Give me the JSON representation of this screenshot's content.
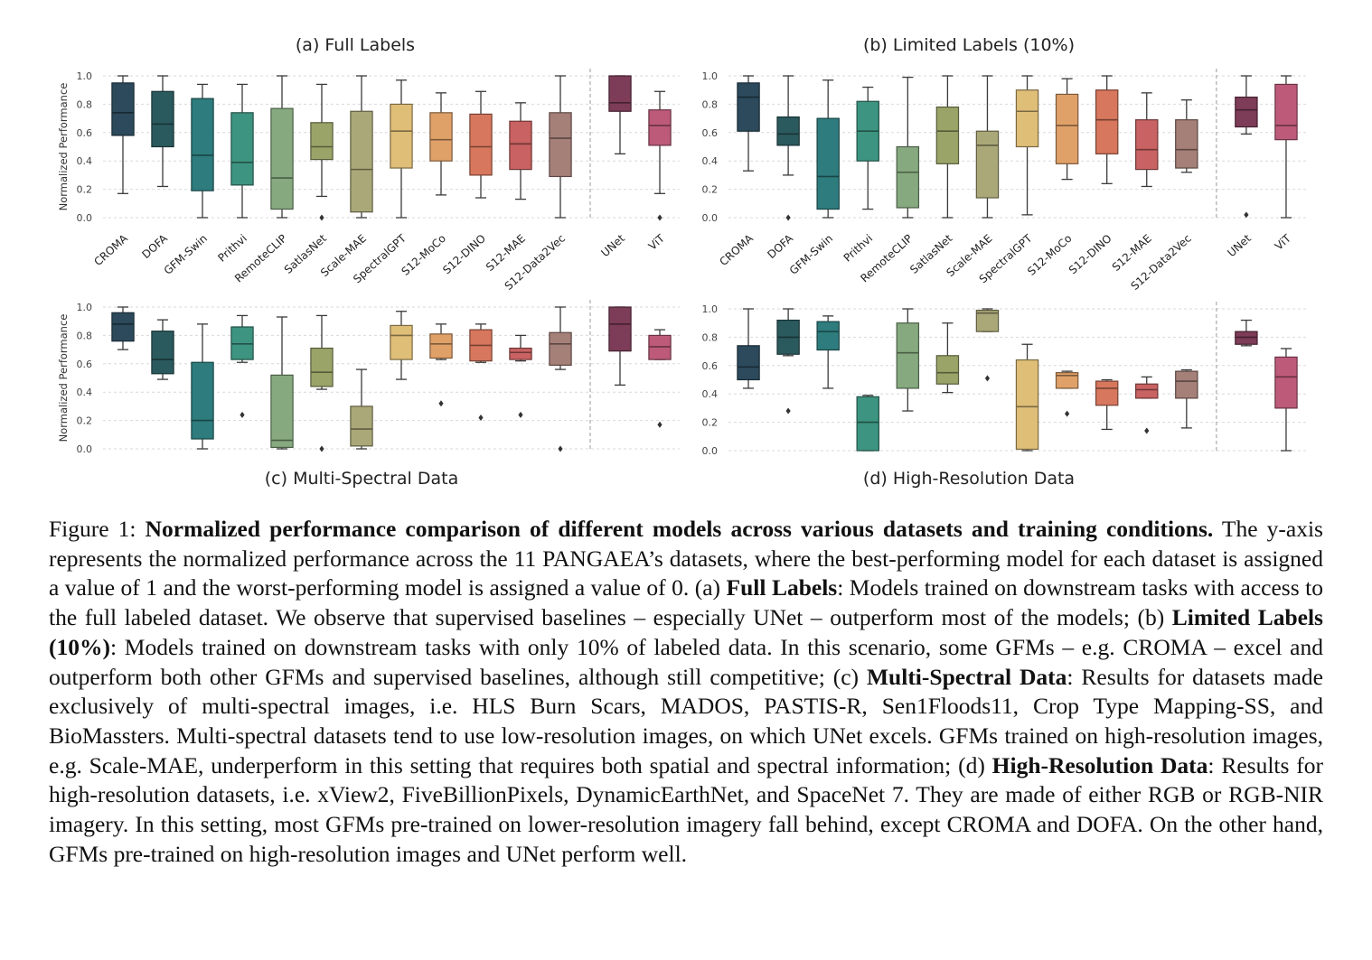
{
  "models": [
    "CROMA",
    "DOFA",
    "GFM-Swin",
    "Prithvi",
    "RemoteCLIP",
    "SatlasNet",
    "Scale-MAE",
    "SpectralGPT",
    "S12-MoCo",
    "S12-DINO",
    "S12-MAE",
    "S12-Data2Vec",
    "UNet",
    "ViT"
  ],
  "colors": [
    "#2c4a5c",
    "#2b5a5e",
    "#2e7c7d",
    "#3d9480",
    "#86a97f",
    "#9aa468",
    "#aaa878",
    "#dfbe78",
    "#e0a169",
    "#d7775d",
    "#c96262",
    "#a58078",
    "#7d3c58",
    "#bd5a7a"
  ],
  "chart_data": [
    {
      "type": "box",
      "title": "(a) Full Labels",
      "ylabel": "Normalized Performance",
      "ylim": [
        0,
        1
      ],
      "yticks": [
        "0.0",
        "0.2",
        "0.4",
        "0.6",
        "0.8",
        "1.0"
      ],
      "categories": [
        "CROMA",
        "DOFA",
        "GFM-Swin",
        "Prithvi",
        "RemoteCLIP",
        "SatlasNet",
        "Scale-MAE",
        "SpectralGPT",
        "S12-MoCo",
        "S12-DINO",
        "S12-MAE",
        "S12-Data2Vec",
        "UNet",
        "ViT"
      ],
      "boxes": [
        {
          "min": 0.17,
          "q1": 0.58,
          "median": 0.74,
          "q3": 0.95,
          "max": 1.0,
          "outliers": []
        },
        {
          "min": 0.22,
          "q1": 0.5,
          "median": 0.66,
          "q3": 0.89,
          "max": 1.0,
          "outliers": []
        },
        {
          "min": 0.0,
          "q1": 0.19,
          "median": 0.44,
          "q3": 0.84,
          "max": 0.94,
          "outliers": []
        },
        {
          "min": 0.0,
          "q1": 0.23,
          "median": 0.39,
          "q3": 0.74,
          "max": 0.94,
          "outliers": []
        },
        {
          "min": 0.0,
          "q1": 0.06,
          "median": 0.28,
          "q3": 0.77,
          "max": 1.0,
          "outliers": []
        },
        {
          "min": 0.15,
          "q1": 0.41,
          "median": 0.5,
          "q3": 0.67,
          "max": 0.94,
          "outliers": [
            0.0
          ]
        },
        {
          "min": 0.0,
          "q1": 0.04,
          "median": 0.34,
          "q3": 0.75,
          "max": 1.0,
          "outliers": []
        },
        {
          "min": 0.0,
          "q1": 0.35,
          "median": 0.61,
          "q3": 0.8,
          "max": 0.97,
          "outliers": []
        },
        {
          "min": 0.16,
          "q1": 0.4,
          "median": 0.55,
          "q3": 0.74,
          "max": 0.88,
          "outliers": []
        },
        {
          "min": 0.14,
          "q1": 0.3,
          "median": 0.5,
          "q3": 0.73,
          "max": 0.89,
          "outliers": []
        },
        {
          "min": 0.13,
          "q1": 0.34,
          "median": 0.52,
          "q3": 0.68,
          "max": 0.81,
          "outliers": []
        },
        {
          "min": 0.0,
          "q1": 0.29,
          "median": 0.56,
          "q3": 0.74,
          "max": 1.0,
          "outliers": []
        },
        {
          "min": 0.45,
          "q1": 0.75,
          "median": 0.81,
          "q3": 1.0,
          "max": 1.0,
          "outliers": []
        },
        {
          "min": 0.17,
          "q1": 0.51,
          "median": 0.65,
          "q3": 0.76,
          "max": 0.89,
          "outliers": [
            0.0
          ]
        }
      ]
    },
    {
      "type": "box",
      "title": "(b) Limited Labels (10%)",
      "ylabel": "",
      "ylim": [
        0,
        1
      ],
      "yticks": [
        "0.0",
        "0.2",
        "0.4",
        "0.6",
        "0.8",
        "1.0"
      ],
      "categories": [
        "CROMA",
        "DOFA",
        "GFM-Swin",
        "Prithvi",
        "RemoteCLIP",
        "SatlasNet",
        "Scale-MAE",
        "SpectralGPT",
        "S12-MoCo",
        "S12-DINO",
        "S12-MAE",
        "S12-Data2Vec",
        "UNet",
        "ViT"
      ],
      "boxes": [
        {
          "min": 0.33,
          "q1": 0.61,
          "median": 0.85,
          "q3": 0.95,
          "max": 1.0,
          "outliers": []
        },
        {
          "min": 0.3,
          "q1": 0.51,
          "median": 0.59,
          "q3": 0.71,
          "max": 1.0,
          "outliers": [
            0.0
          ]
        },
        {
          "min": 0.0,
          "q1": 0.06,
          "median": 0.29,
          "q3": 0.7,
          "max": 0.97,
          "outliers": []
        },
        {
          "min": 0.06,
          "q1": 0.4,
          "median": 0.61,
          "q3": 0.82,
          "max": 0.92,
          "outliers": []
        },
        {
          "min": 0.0,
          "q1": 0.07,
          "median": 0.32,
          "q3": 0.5,
          "max": 0.99,
          "outliers": []
        },
        {
          "min": 0.0,
          "q1": 0.38,
          "median": 0.61,
          "q3": 0.78,
          "max": 1.0,
          "outliers": []
        },
        {
          "min": 0.0,
          "q1": 0.14,
          "median": 0.51,
          "q3": 0.61,
          "max": 1.0,
          "outliers": []
        },
        {
          "min": 0.02,
          "q1": 0.5,
          "median": 0.75,
          "q3": 0.9,
          "max": 1.0,
          "outliers": []
        },
        {
          "min": 0.27,
          "q1": 0.38,
          "median": 0.65,
          "q3": 0.87,
          "max": 0.98,
          "outliers": []
        },
        {
          "min": 0.24,
          "q1": 0.45,
          "median": 0.69,
          "q3": 0.9,
          "max": 1.0,
          "outliers": []
        },
        {
          "min": 0.22,
          "q1": 0.34,
          "median": 0.48,
          "q3": 0.69,
          "max": 0.88,
          "outliers": []
        },
        {
          "min": 0.32,
          "q1": 0.35,
          "median": 0.48,
          "q3": 0.69,
          "max": 0.83,
          "outliers": []
        },
        {
          "min": 0.59,
          "q1": 0.64,
          "median": 0.76,
          "q3": 0.85,
          "max": 1.0,
          "outliers": [
            0.02
          ]
        },
        {
          "min": 0.0,
          "q1": 0.55,
          "median": 0.65,
          "q3": 0.94,
          "max": 1.0,
          "outliers": []
        }
      ]
    },
    {
      "type": "box",
      "title": "(c) Multi-Spectral Data",
      "ylabel": "Normalized Performance",
      "ylim": [
        0,
        1
      ],
      "yticks": [
        "0.0",
        "0.2",
        "0.4",
        "0.6",
        "0.8",
        "1.0"
      ],
      "categories": [
        "CROMA",
        "DOFA",
        "GFM-Swin",
        "Prithvi",
        "RemoteCLIP",
        "SatlasNet",
        "Scale-MAE",
        "SpectralGPT",
        "S12-MoCo",
        "S12-DINO",
        "S12-MAE",
        "S12-Data2Vec",
        "UNet",
        "ViT"
      ],
      "boxes": [
        {
          "min": 0.7,
          "q1": 0.76,
          "median": 0.88,
          "q3": 0.96,
          "max": 1.0,
          "outliers": []
        },
        {
          "min": 0.49,
          "q1": 0.53,
          "median": 0.63,
          "q3": 0.83,
          "max": 0.91,
          "outliers": []
        },
        {
          "min": 0.0,
          "q1": 0.07,
          "median": 0.2,
          "q3": 0.61,
          "max": 0.88,
          "outliers": []
        },
        {
          "min": 0.61,
          "q1": 0.63,
          "median": 0.74,
          "q3": 0.86,
          "max": 0.94,
          "outliers": [
            0.24
          ]
        },
        {
          "min": 0.0,
          "q1": 0.01,
          "median": 0.06,
          "q3": 0.52,
          "max": 0.93,
          "outliers": []
        },
        {
          "min": 0.42,
          "q1": 0.44,
          "median": 0.54,
          "q3": 0.71,
          "max": 0.94,
          "outliers": [
            0.0
          ]
        },
        {
          "min": 0.0,
          "q1": 0.02,
          "median": 0.14,
          "q3": 0.3,
          "max": 0.56,
          "outliers": []
        },
        {
          "min": 0.49,
          "q1": 0.63,
          "median": 0.8,
          "q3": 0.87,
          "max": 0.97,
          "outliers": []
        },
        {
          "min": 0.63,
          "q1": 0.64,
          "median": 0.74,
          "q3": 0.81,
          "max": 0.88,
          "outliers": [
            0.32
          ]
        },
        {
          "min": 0.61,
          "q1": 0.62,
          "median": 0.73,
          "q3": 0.84,
          "max": 0.88,
          "outliers": [
            0.22
          ]
        },
        {
          "min": 0.62,
          "q1": 0.63,
          "median": 0.68,
          "q3": 0.71,
          "max": 0.8,
          "outliers": [
            0.24
          ]
        },
        {
          "min": 0.56,
          "q1": 0.59,
          "median": 0.74,
          "q3": 0.82,
          "max": 1.0,
          "outliers": [
            0.0
          ]
        },
        {
          "min": 0.45,
          "q1": 0.69,
          "median": 0.88,
          "q3": 1.0,
          "max": 1.0,
          "outliers": []
        },
        {
          "min": 0.63,
          "q1": 0.63,
          "median": 0.72,
          "q3": 0.8,
          "max": 0.84,
          "outliers": [
            0.17
          ]
        }
      ]
    },
    {
      "type": "box",
      "title": "(d) High-Resolution Data",
      "ylabel": "",
      "ylim": [
        0,
        1
      ],
      "yticks": [
        "0.0",
        "0.2",
        "0.4",
        "0.6",
        "0.8",
        "1.0"
      ],
      "categories": [
        "CROMA",
        "DOFA",
        "GFM-Swin",
        "Prithvi",
        "RemoteCLIP",
        "SatlasNet",
        "Scale-MAE",
        "SpectralGPT",
        "S12-MoCo",
        "S12-DINO",
        "S12-MAE",
        "S12-Data2Vec",
        "UNet",
        "ViT"
      ],
      "boxes": [
        {
          "min": 0.44,
          "q1": 0.5,
          "median": 0.59,
          "q3": 0.74,
          "max": 1.0,
          "outliers": []
        },
        {
          "min": 0.67,
          "q1": 0.68,
          "median": 0.8,
          "q3": 0.92,
          "max": 1.0,
          "outliers": [
            0.28
          ]
        },
        {
          "min": 0.44,
          "q1": 0.71,
          "median": 0.84,
          "q3": 0.91,
          "max": 0.95,
          "outliers": []
        },
        {
          "min": 0.0,
          "q1": 0.0,
          "median": 0.2,
          "q3": 0.38,
          "max": 0.39,
          "outliers": []
        },
        {
          "min": 0.28,
          "q1": 0.44,
          "median": 0.69,
          "q3": 0.9,
          "max": 1.0,
          "outliers": []
        },
        {
          "min": 0.41,
          "q1": 0.47,
          "median": 0.55,
          "q3": 0.67,
          "max": 0.9,
          "outliers": []
        },
        {
          "min": 0.84,
          "q1": 0.84,
          "median": 0.97,
          "q3": 0.99,
          "max": 1.0,
          "outliers": [
            0.51
          ]
        },
        {
          "min": 0.0,
          "q1": 0.01,
          "median": 0.31,
          "q3": 0.64,
          "max": 0.75,
          "outliers": []
        },
        {
          "min": 0.44,
          "q1": 0.44,
          "median": 0.53,
          "q3": 0.55,
          "max": 0.56,
          "outliers": [
            0.26
          ]
        },
        {
          "min": 0.15,
          "q1": 0.32,
          "median": 0.44,
          "q3": 0.49,
          "max": 0.5,
          "outliers": []
        },
        {
          "min": 0.37,
          "q1": 0.37,
          "median": 0.43,
          "q3": 0.47,
          "max": 0.52,
          "outliers": [
            0.14
          ]
        },
        {
          "min": 0.16,
          "q1": 0.37,
          "median": 0.49,
          "q3": 0.56,
          "max": 0.57,
          "outliers": []
        },
        {
          "min": 0.74,
          "q1": 0.75,
          "median": 0.8,
          "q3": 0.84,
          "max": 0.92,
          "outliers": []
        },
        {
          "min": 0.0,
          "q1": 0.3,
          "median": 0.52,
          "q3": 0.66,
          "max": 0.72,
          "outliers": []
        }
      ]
    }
  ],
  "caption": {
    "prefix": "Figure 1: ",
    "bold_title": "Normalized performance comparison of different models across various datasets and training conditions.",
    "text1": " The y-axis represents the normalized performance across the 11 PANGAEA’s datasets, where the best-performing model for each dataset is assigned a value of 1 and the worst-performing model is assigned a value of 0. (a) ",
    "bold_a": "Full Labels",
    "text_a": ": Models trained on downstream tasks with access to the full labeled dataset. We observe that supervised baselines – especially UNet – outperform most of the models; (b) ",
    "bold_b": "Limited Labels (10%)",
    "text_b": ": Models trained on downstream tasks with only 10% of labeled data. In this scenario, some GFMs – e.g. CROMA – excel and outperform both other GFMs and supervised baselines, although still competitive; (c) ",
    "bold_c": "Multi-Spectral Data",
    "text_c": ": Results for datasets made exclusively of multi-spectral images, i.e. HLS Burn Scars, MADOS, PASTIS-R, Sen1Floods11, Crop Type Mapping-SS, and BioMassters. Multi-spectral datasets tend to use low-resolution images, on which UNet excels. GFMs trained on high-resolution images, e.g. Scale-MAE, underperform in this setting that requires both spatial and spectral information; (d) ",
    "bold_d": "High-Resolution Data",
    "text_d": ": Results for high-resolution datasets, i.e. xView2, FiveBillionPixels, DynamicEarthNet, and SpaceNet 7. They are made of either RGB or RGB-NIR imagery. In this setting, most GFMs pre-trained on lower-resolution imagery fall behind, except CROMA and DOFA. On the other hand, GFMs pre-trained on high-resolution images and UNet perform well."
  }
}
